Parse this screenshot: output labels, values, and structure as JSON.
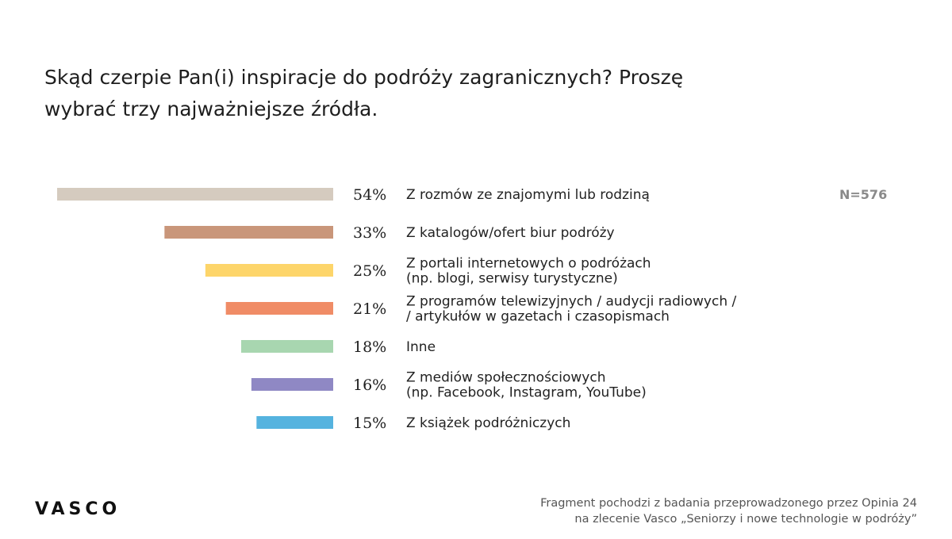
{
  "title": {
    "line1": "Skąd czerpie Pan(i) inspiracje do podróży zagranicznych? Proszę",
    "line2": "wybrać trzy najważniejsze źródła."
  },
  "sample": "N=576",
  "logo": "VASCO",
  "footnote": {
    "line1": "Fragment pochodzi z badania przeprowadzonego przez Opinia 24",
    "line2": "na zlecenie Vasco „Seniorzy i nowe technologie w podróży”"
  },
  "chart_data": {
    "type": "bar",
    "orientation": "horizontal",
    "title": "Skąd czerpie Pan(i) inspiracje do podróży zagranicznych? Proszę wybrać trzy najważniejsze źródła.",
    "xlim": [
      0,
      54
    ],
    "unit": "%",
    "items": [
      {
        "value": 54,
        "label": "54%",
        "lines": [
          "Z rozmów ze znajomymi lub rodziną"
        ],
        "color": "#d5cbbf"
      },
      {
        "value": 33,
        "label": "33%",
        "lines": [
          "Z katalogów/ofert biur podróży"
        ],
        "color": "#c9967a"
      },
      {
        "value": 25,
        "label": "25%",
        "lines": [
          "Z portali internetowych o podróżach",
          "(np. blogi, serwisy turystyczne)"
        ],
        "color": "#fdd56a"
      },
      {
        "value": 21,
        "label": "21%",
        "lines": [
          "Z programów telewizyjnych / audycji radiowych /",
          "/ artykułów w gazetach i czasopismach"
        ],
        "color": "#f08c66"
      },
      {
        "value": 18,
        "label": "18%",
        "lines": [
          "Inne"
        ],
        "color": "#a8d6b0"
      },
      {
        "value": 16,
        "label": "16%",
        "lines": [
          "Z mediów społecznościowych",
          "(np. Facebook, Instagram, YouTube)"
        ],
        "color": "#8f88c4"
      },
      {
        "value": 15,
        "label": "15%",
        "lines": [
          "Z książek podróżniczych"
        ],
        "color": "#55b3df"
      }
    ]
  }
}
